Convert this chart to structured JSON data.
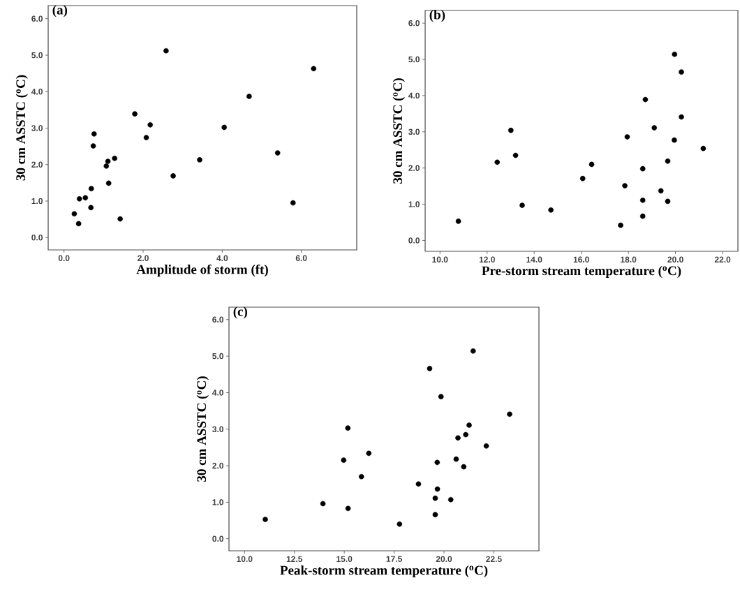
{
  "chart_data": [
    {
      "type": "scatter",
      "title": "(a)",
      "xlabel": "Amplitude of storm (ft)",
      "ylabel": "30 cm ASSTC ($^{o}$C)",
      "color": "#000000",
      "marker": "circle",
      "x": [
        2.58,
        6.31,
        4.68,
        1.79,
        2.18,
        4.05,
        2.08,
        0.76,
        0.74,
        5.4,
        3.43,
        1.28,
        1.11,
        1.07,
        2.76,
        1.13,
        0.69,
        0.39,
        0.54,
        0.68,
        5.79,
        0.26,
        0.37,
        1.42
      ],
      "values": [
        5.12,
        4.63,
        3.87,
        3.39,
        3.09,
        3.02,
        2.74,
        2.84,
        2.51,
        2.32,
        2.13,
        2.17,
        2.09,
        1.96,
        1.69,
        1.49,
        1.34,
        1.06,
        1.09,
        0.82,
        0.95,
        0.65,
        0.38,
        0.51
      ],
      "xlim": [
        -0.4,
        7.4
      ],
      "ylim": [
        -0.34,
        6.36
      ],
      "xticks": [
        {
          "value": 0,
          "label": "0.0"
        },
        {
          "value": 2,
          "label": "2.0"
        },
        {
          "value": 4,
          "label": "4.0"
        },
        {
          "value": 6,
          "label": "6.0"
        }
      ],
      "yticks": [
        {
          "value": 0,
          "label": "0.0"
        },
        {
          "value": 1,
          "label": "1.0"
        },
        {
          "value": 2,
          "label": "2.0"
        },
        {
          "value": 3,
          "label": "3.0"
        },
        {
          "value": 4,
          "label": "4.0"
        },
        {
          "value": 5,
          "label": "5.0"
        },
        {
          "value": 6,
          "label": "6.0"
        }
      ]
    },
    {
      "type": "scatter",
      "title": "(b)",
      "xlabel": "Pre-storm stream temperature ($^{o}$C)",
      "ylabel": "30 cm ASSTC ($^{o}$C)",
      "color": "#000000",
      "marker": "circle",
      "x": [
        19.96,
        20.25,
        18.72,
        20.25,
        19.1,
        17.95,
        19.95,
        21.18,
        19.67,
        18.61,
        17.67,
        18.61,
        18.61,
        19.67,
        19.38,
        17.85,
        16.44,
        16.06,
        14.71,
        13.49,
        13.01,
        13.21,
        12.43,
        10.78
      ],
      "values": [
        5.14,
        4.65,
        3.89,
        3.41,
        3.11,
        2.86,
        2.77,
        2.54,
        2.19,
        1.98,
        0.42,
        0.67,
        1.11,
        1.08,
        1.37,
        1.51,
        2.1,
        1.71,
        0.84,
        0.97,
        3.04,
        2.35,
        2.16,
        0.53
      ],
      "xlim": [
        9.37,
        22.65
      ],
      "ylim": [
        -0.3,
        6.35
      ],
      "xticks": [
        {
          "value": 10,
          "label": "10.0"
        },
        {
          "value": 12,
          "label": "12.0"
        },
        {
          "value": 14,
          "label": "14.0"
        },
        {
          "value": 16,
          "label": "16.0"
        },
        {
          "value": 18,
          "label": "18.0"
        },
        {
          "value": 20,
          "label": "20.0"
        },
        {
          "value": 22,
          "label": "22.0"
        }
      ],
      "yticks": [
        {
          "value": 0,
          "label": "0.0"
        },
        {
          "value": 1,
          "label": "1.0"
        },
        {
          "value": 2,
          "label": "2.0"
        },
        {
          "value": 3,
          "label": "3.0"
        },
        {
          "value": 4,
          "label": "4.0"
        },
        {
          "value": 5,
          "label": "5.0"
        },
        {
          "value": 6,
          "label": "6.0"
        }
      ]
    },
    {
      "type": "scatter",
      "title": "(c)",
      "xlabel": "Peak-storm stream temperature ($^{o}$C)",
      "ylabel": "30 cm ASSTC ($^{o}$C)",
      "color": "#000000",
      "marker": "circle",
      "x": [
        21.46,
        19.28,
        19.85,
        23.29,
        21.26,
        21.09,
        20.7,
        22.12,
        15.18,
        16.23,
        14.97,
        19.66,
        20.61,
        20.99,
        15.86,
        18.72,
        19.67,
        19.56,
        20.34,
        19.56,
        13.93,
        15.19,
        17.77,
        11.04
      ],
      "values": [
        5.14,
        4.66,
        3.89,
        3.41,
        3.11,
        2.85,
        2.76,
        2.54,
        3.03,
        2.34,
        2.15,
        2.09,
        2.18,
        1.97,
        1.7,
        1.5,
        1.36,
        1.11,
        1.07,
        0.66,
        0.96,
        0.83,
        0.4,
        0.53
      ],
      "xlim": [
        9.22,
        24.76
      ],
      "ylim": [
        -0.33,
        6.34
      ],
      "xticks": [
        {
          "value": 10,
          "label": "10.0"
        },
        {
          "value": 12.5,
          "label": "12.5"
        },
        {
          "value": 15,
          "label": "15.0"
        },
        {
          "value": 17.5,
          "label": "17.5"
        },
        {
          "value": 20,
          "label": "20.0"
        },
        {
          "value": 22.5,
          "label": "22.5"
        }
      ],
      "yticks": [
        {
          "value": 0,
          "label": "0.0"
        },
        {
          "value": 1,
          "label": "1.0"
        },
        {
          "value": 2,
          "label": "2.0"
        },
        {
          "value": 3,
          "label": "3.0"
        },
        {
          "value": 4,
          "label": "4.0"
        },
        {
          "value": 5,
          "label": "5.0"
        },
        {
          "value": 6,
          "label": "6.0"
        }
      ]
    }
  ]
}
